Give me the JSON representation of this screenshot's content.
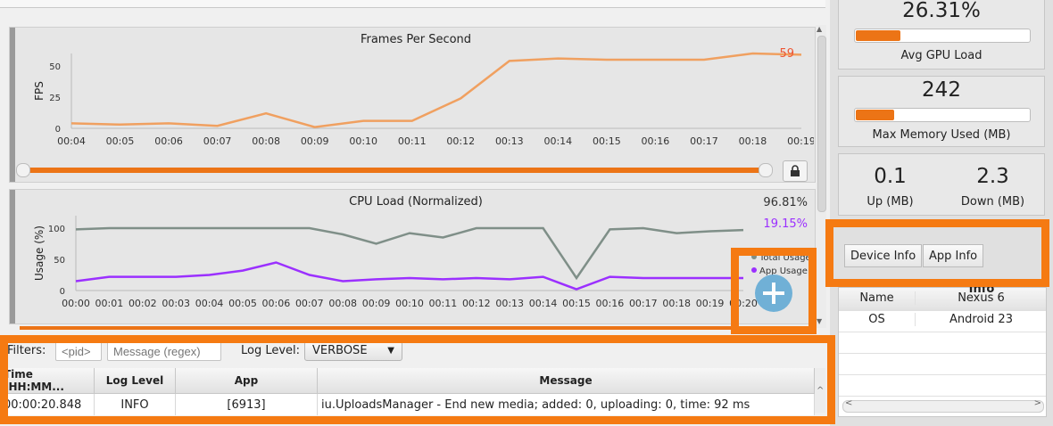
{
  "fps_chart": {
    "title": "Frames Per Second",
    "ylabel": "FPS",
    "current_value": "59",
    "current_color": "#ee5533"
  },
  "cpu_chart": {
    "title": "CPU Load (Normalized)",
    "ylabel": "Usage (%)",
    "total_value": "96.81%",
    "app_value": "19.15%",
    "app_color": "#9b30ff",
    "total_color": "#7f8f88",
    "legend_total": "Total Usage",
    "legend_app": "App Usage"
  },
  "chart_data": [
    {
      "type": "line",
      "title": "Frames Per Second",
      "ylabel": "FPS",
      "x": [
        "00:04",
        "00:05",
        "00:06",
        "00:07",
        "00:08",
        "00:09",
        "00:10",
        "00:11",
        "00:12",
        "00:13",
        "00:14",
        "00:15",
        "00:16",
        "00:17",
        "00:18",
        "00:19"
      ],
      "series": [
        {
          "values": [
            4,
            3,
            4,
            2,
            12,
            1,
            6,
            6,
            24,
            54,
            56,
            55,
            55,
            55,
            60,
            59
          ]
        }
      ],
      "yticks": [
        0,
        25,
        50
      ],
      "ylim": [
        0,
        60
      ],
      "color": "#f0a060"
    },
    {
      "type": "line",
      "title": "CPU Load (Normalized)",
      "ylabel": "Usage (%)",
      "x": [
        "00:00",
        "00:01",
        "00:02",
        "00:03",
        "00:04",
        "00:05",
        "00:06",
        "00:07",
        "00:08",
        "00:09",
        "00:10",
        "00:11",
        "00:12",
        "00:13",
        "00:14",
        "00:15",
        "00:16",
        "00:17",
        "00:18",
        "00:19",
        "00:20"
      ],
      "yticks": [
        0,
        50,
        100
      ],
      "ylim": [
        0,
        120
      ],
      "series": [
        {
          "name": "Total Usage",
          "values": [
            98,
            100,
            100,
            100,
            100,
            100,
            100,
            100,
            90,
            75,
            92,
            85,
            100,
            100,
            100,
            20,
            98,
            100,
            92,
            95,
            97
          ]
        },
        {
          "name": "App Usage",
          "values": [
            15,
            22,
            22,
            22,
            25,
            32,
            45,
            25,
            15,
            18,
            20,
            18,
            20,
            18,
            22,
            2,
            22,
            20,
            20,
            20,
            20
          ]
        }
      ]
    }
  ],
  "filters": {
    "label": "Filters:",
    "pid_placeholder": "<pid>",
    "message_placeholder": "Message (regex)",
    "log_level_label": "Log Level:",
    "log_level_value": "VERBOSE"
  },
  "log_table": {
    "headers": [
      "Time (HH:MM...",
      "Log Level",
      "App",
      "Message"
    ],
    "rows": [
      [
        "00:00:20.848",
        "INFO",
        "[6913]",
        "iu.UploadsManager - End new media; added: 0, uploading: 0, time: 92 ms"
      ]
    ]
  },
  "stats": {
    "gpu": {
      "value": "26.31%",
      "label": "Avg GPU Load",
      "fill": 0.26
    },
    "memory": {
      "value": "242",
      "label": "Max Memory Used (MB)",
      "fill": 0.22
    },
    "up": {
      "value": "0.1",
      "label": "Up (MB)"
    },
    "down": {
      "value": "2.3",
      "label": "Down (MB)"
    }
  },
  "tabs": [
    "Device Info",
    "App Info"
  ],
  "info": {
    "header_value": "Info",
    "rows": [
      {
        "key": "Name",
        "value": "Nexus 6"
      },
      {
        "key": "OS",
        "value": "Android 23"
      }
    ]
  },
  "accent_color": "#f57a12"
}
